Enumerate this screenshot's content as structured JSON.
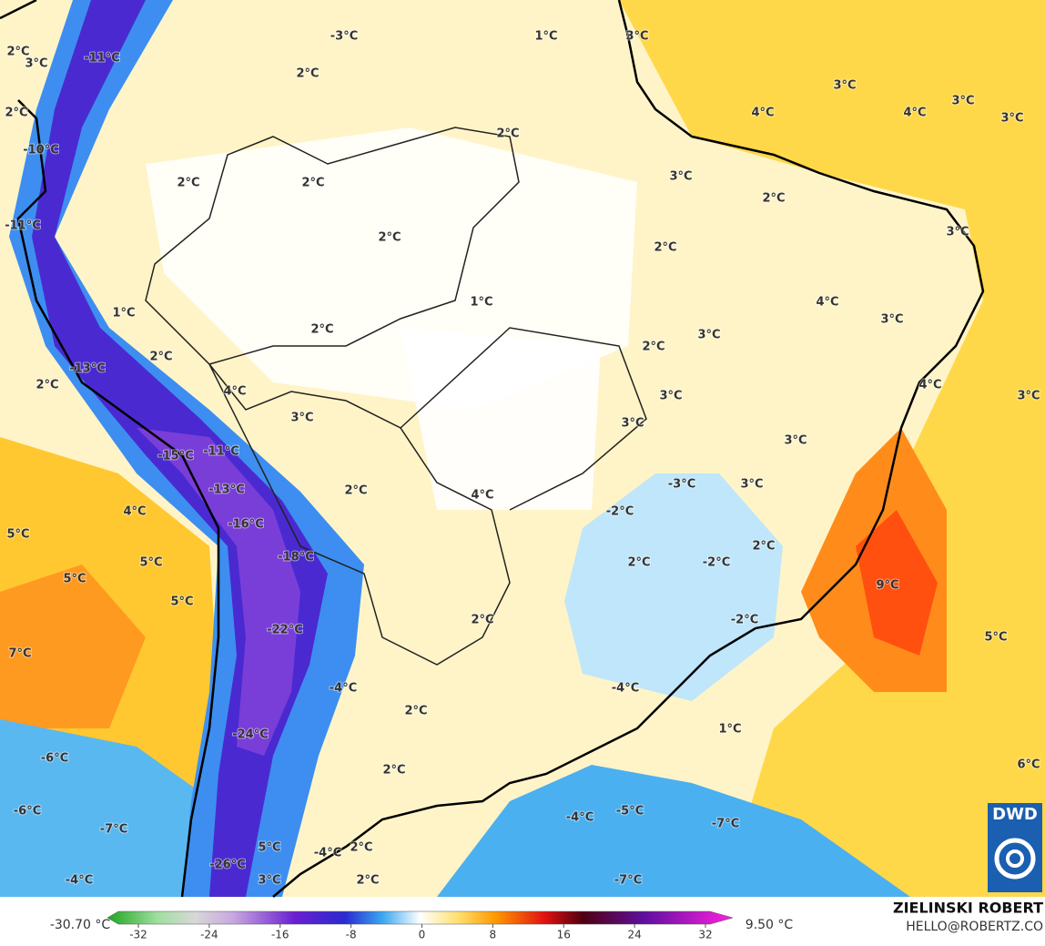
{
  "map": {
    "labels": [
      "-3°C",
      "1°C",
      "3°C",
      "2°C",
      "3°C",
      "-11°C",
      "2°C",
      "3°C",
      "4°C",
      "4°C",
      "3°C",
      "3°C",
      "2°C",
      "-10°C",
      "2°C",
      "3°C",
      "2°C",
      "2°C",
      "2°C",
      "-11°C",
      "2°C",
      "2°C",
      "3°C",
      "1°C",
      "4°C",
      "3°C",
      "1°C",
      "2°C",
      "3°C",
      "2°C",
      "2°C",
      "-13°C",
      "2°C",
      "4°C",
      "4°C",
      "3°C",
      "3°C",
      "3°C",
      "3°C",
      "3°C",
      "-15°C",
      "-11°C",
      "-13°C",
      "2°C",
      "4°C",
      "-3°C",
      "3°C",
      "4°C",
      "-2°C",
      "-16°C",
      "5°C",
      "5°C",
      "5°C",
      "-18°C",
      "2°C",
      "-2°C",
      "2°C",
      "9°C",
      "5°C",
      "2°C",
      "-2°C",
      "-22°C",
      "5°C",
      "7°C",
      "-4°C",
      "-4°C",
      "2°C",
      "1°C",
      "-24°C",
      "-6°C",
      "2°C",
      "6°C",
      "-6°C",
      "-7°C",
      "-4°C",
      "-5°C",
      "-7°C",
      "2°C",
      "5°C",
      "-4°C",
      "-26°C",
      "-4°C",
      "3°C",
      "2°C",
      "-7°C"
    ]
  },
  "colorbar": {
    "min_label": "-30.70 °C",
    "max_label": "9.50 °C",
    "ticks": [
      -32,
      -24,
      -16,
      -8,
      0,
      8,
      16,
      24,
      32
    ]
  },
  "credit": {
    "author": "ZIELINSKI ROBERT",
    "contact": "HELLO@ROBERTZ.CO",
    "logo": "DWD"
  }
}
